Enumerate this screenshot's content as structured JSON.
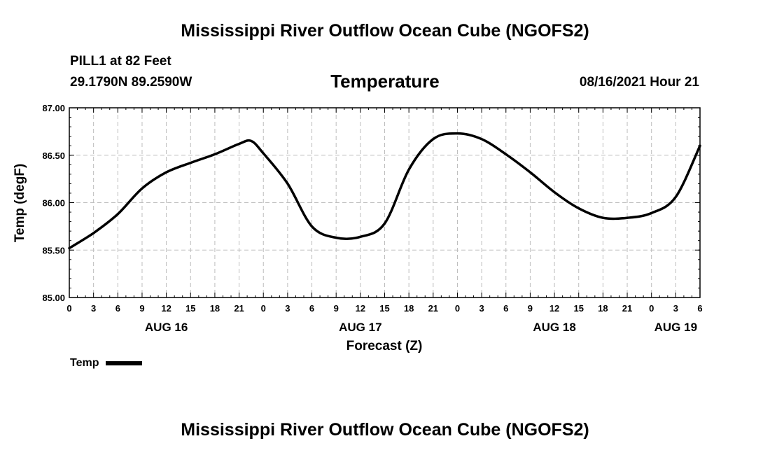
{
  "header": {
    "title": "Mississippi River Outflow Ocean Cube (NGOFS2)",
    "station": "PILL1 at 82 Feet",
    "coordinates": "29.1790N  89.2590W",
    "variable_title": "Temperature",
    "issued": "08/16/2021 Hour 21"
  },
  "footer": {
    "title": "Mississippi River Outflow Ocean Cube (NGOFS2)"
  },
  "legend": {
    "label": "Temp"
  },
  "chart_data": {
    "type": "line",
    "title": "Temperature",
    "xlabel": "Forecast (Z)",
    "ylabel": "Temp (degF)",
    "xlim": [
      0,
      78
    ],
    "ylim": [
      85.0,
      87.0
    ],
    "yticks": [
      85.0,
      85.5,
      86.0,
      86.5,
      87.0
    ],
    "ytick_labels": [
      "85.00",
      "85.50",
      "86.00",
      "86.50",
      "87.00"
    ],
    "xtick_labels": [
      "0",
      "3",
      "6",
      "9",
      "12",
      "15",
      "18",
      "21",
      "0",
      "3",
      "6",
      "9",
      "12",
      "15",
      "18",
      "21",
      "0",
      "3",
      "6",
      "9",
      "12",
      "15",
      "18",
      "21",
      "0",
      "3",
      "6"
    ],
    "date_labels": [
      {
        "label": "AUG 16",
        "hour": 12
      },
      {
        "label": "AUG 17",
        "hour": 36
      },
      {
        "label": "AUG 18",
        "hour": 60
      },
      {
        "label": "AUG 19",
        "hour": 75
      }
    ],
    "grid": true,
    "series": [
      {
        "name": "Temp",
        "x": [
          0,
          3,
          6,
          9,
          12,
          15,
          18,
          21,
          22.5,
          24,
          27,
          30,
          33,
          36,
          39,
          42,
          45,
          48,
          51,
          54,
          57,
          60,
          63,
          66,
          69,
          72,
          75,
          78
        ],
        "values": [
          85.52,
          85.68,
          85.88,
          86.15,
          86.32,
          86.42,
          86.51,
          86.62,
          86.65,
          86.52,
          86.2,
          85.75,
          85.63,
          85.64,
          85.78,
          86.35,
          86.67,
          86.73,
          86.67,
          86.51,
          86.32,
          86.11,
          85.94,
          85.84,
          85.84,
          85.89,
          86.06,
          86.6
        ]
      }
    ]
  }
}
